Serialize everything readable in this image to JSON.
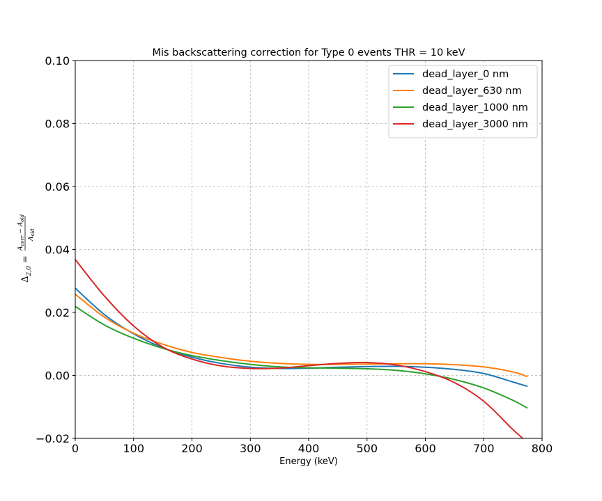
{
  "chart_data": {
    "type": "line",
    "title": "Mis backscattering correction for Type 0 events THR = 10 keV",
    "xlabel": "Energy (keV)",
    "ylabel": {
      "lhs": "Δ",
      "lhs_sub": "2,0",
      "equals": " = ",
      "numerator": "A",
      "numerator_sub": "corr",
      "minus": " − ",
      "numerator2": "A",
      "numerator2_sub": "old",
      "denominator": "A",
      "denominator_sub": "old"
    },
    "xlim": [
      0,
      800
    ],
    "ylim": [
      -0.02,
      0.1
    ],
    "xticks": [
      0,
      100,
      200,
      300,
      400,
      500,
      600,
      700,
      800
    ],
    "xtick_labels": [
      "0",
      "100",
      "200",
      "300",
      "400",
      "500",
      "600",
      "700",
      "800"
    ],
    "yticks": [
      -0.02,
      0.0,
      0.02,
      0.04,
      0.06,
      0.08,
      0.1
    ],
    "ytick_labels": [
      "−0.02",
      "0.00",
      "0.02",
      "0.04",
      "0.06",
      "0.08",
      "0.10"
    ],
    "grid": true,
    "legend_position": "top-right",
    "x": [
      0,
      50,
      100,
      150,
      200,
      250,
      300,
      350,
      400,
      450,
      500,
      550,
      600,
      650,
      700,
      750,
      775
    ],
    "series": [
      {
        "name": "dead_layer_0 nm",
        "color": "#1f77b4",
        "values": [
          0.0277,
          0.0193,
          0.0132,
          0.0088,
          0.0058,
          0.0038,
          0.0026,
          0.0022,
          0.0023,
          0.0026,
          0.0028,
          0.0029,
          0.0026,
          0.0019,
          0.0006,
          -0.0021,
          -0.0035
        ]
      },
      {
        "name": "dead_layer_630 nm",
        "color": "#ff7f0e",
        "values": [
          0.0258,
          0.0185,
          0.0134,
          0.0099,
          0.0073,
          0.0057,
          0.0045,
          0.0038,
          0.0035,
          0.0035,
          0.0036,
          0.0037,
          0.0037,
          0.0034,
          0.0027,
          0.0011,
          -0.0004
        ]
      },
      {
        "name": "dead_layer_1000 nm",
        "color": "#2ca02c",
        "values": [
          0.0219,
          0.016,
          0.0118,
          0.0086,
          0.0063,
          0.0047,
          0.0035,
          0.0027,
          0.0024,
          0.0023,
          0.0021,
          0.0016,
          0.0005,
          -0.0013,
          -0.004,
          -0.0079,
          -0.0104
        ]
      },
      {
        "name": "dead_layer_3000 nm",
        "color": "#d62728",
        "values": [
          0.0368,
          0.0252,
          0.0157,
          0.009,
          0.0052,
          0.003,
          0.0022,
          0.0023,
          0.0031,
          0.0038,
          0.0041,
          0.0033,
          0.0012,
          -0.0023,
          -0.0082,
          -0.0172,
          -0.0213
        ]
      }
    ]
  }
}
